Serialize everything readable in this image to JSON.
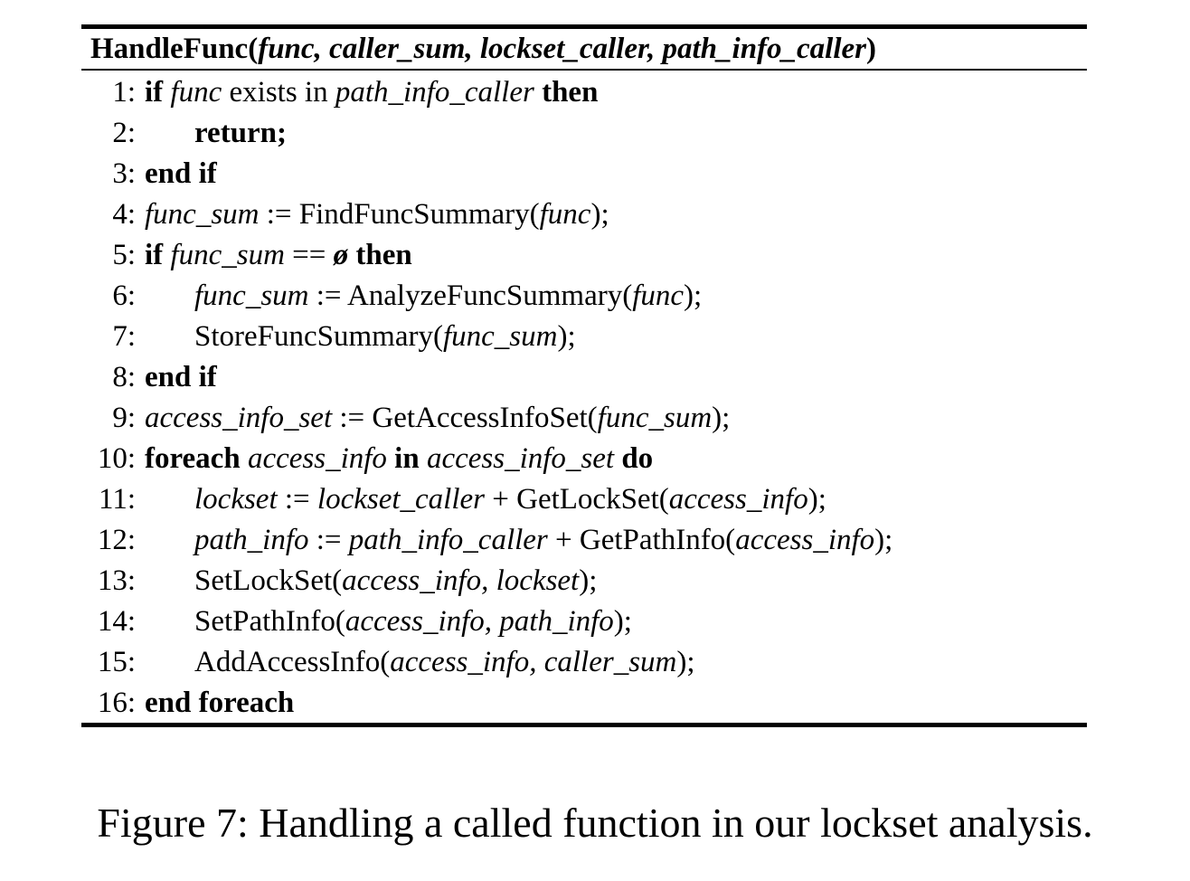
{
  "algorithm": {
    "header": [
      {
        "text": "HandleFunc(",
        "style": "b"
      },
      {
        "text": "func, caller_sum, lockset_caller, path_info_caller",
        "style": "bi"
      },
      {
        "text": ")",
        "style": "b"
      }
    ],
    "lines": [
      {
        "num": "1:",
        "indent": 0,
        "parts": [
          {
            "text": "if",
            "style": "b"
          },
          {
            "text": " "
          },
          {
            "text": "func",
            "style": "i"
          },
          {
            "text": "  exists in  "
          },
          {
            "text": "path_info_caller",
            "style": "i"
          },
          {
            "text": "  "
          },
          {
            "text": "then",
            "style": "b"
          }
        ]
      },
      {
        "num": "2:",
        "indent": 1,
        "parts": [
          {
            "text": "return;",
            "style": "b"
          }
        ]
      },
      {
        "num": "3:",
        "indent": 0,
        "parts": [
          {
            "text": "end if",
            "style": "b"
          }
        ]
      },
      {
        "num": "4:",
        "indent": 0,
        "parts": [
          {
            "text": "func_sum",
            "style": "i"
          },
          {
            "text": " := FindFuncSummary("
          },
          {
            "text": "func",
            "style": "i"
          },
          {
            "text": ");"
          }
        ]
      },
      {
        "num": "5:",
        "indent": 0,
        "parts": [
          {
            "text": "if",
            "style": "b"
          },
          {
            "text": " "
          },
          {
            "text": "func_sum",
            "style": "i"
          },
          {
            "text": "  == "
          },
          {
            "text": "ø",
            "style": "bi"
          },
          {
            "text": "  "
          },
          {
            "text": "then",
            "style": "b"
          }
        ]
      },
      {
        "num": "6:",
        "indent": 1,
        "parts": [
          {
            "text": "func_sum",
            "style": "i"
          },
          {
            "text": " := AnalyzeFuncSummary("
          },
          {
            "text": "func",
            "style": "i"
          },
          {
            "text": ");"
          }
        ]
      },
      {
        "num": "7:",
        "indent": 1,
        "parts": [
          {
            "text": "StoreFuncSummary("
          },
          {
            "text": "func_sum",
            "style": "i"
          },
          {
            "text": ");"
          }
        ]
      },
      {
        "num": "8:",
        "indent": 0,
        "parts": [
          {
            "text": "end if",
            "style": "b"
          }
        ]
      },
      {
        "num": "9:",
        "indent": 0,
        "parts": [
          {
            "text": "access_info_set",
            "style": "i"
          },
          {
            "text": " := GetAccessInfoSet("
          },
          {
            "text": "func_sum",
            "style": "i"
          },
          {
            "text": ");"
          }
        ]
      },
      {
        "num": "10:",
        "indent": 0,
        "parts": [
          {
            "text": "foreach",
            "style": "b"
          },
          {
            "text": "  "
          },
          {
            "text": "access_info",
            "style": "i"
          },
          {
            "text": "  "
          },
          {
            "text": "in",
            "style": "b"
          },
          {
            "text": "  "
          },
          {
            "text": "access_info_set",
            "style": "i"
          },
          {
            "text": "  "
          },
          {
            "text": "do",
            "style": "b"
          }
        ]
      },
      {
        "num": "11:",
        "indent": 1,
        "parts": [
          {
            "text": "lockset",
            "style": "i"
          },
          {
            "text": " := "
          },
          {
            "text": "lockset_caller",
            "style": "i"
          },
          {
            "text": " + GetLockSet("
          },
          {
            "text": "access_info",
            "style": "i"
          },
          {
            "text": ");"
          }
        ]
      },
      {
        "num": "12:",
        "indent": 1,
        "parts": [
          {
            "text": "path_info",
            "style": "i"
          },
          {
            "text": " := "
          },
          {
            "text": "path_info_caller",
            "style": "i"
          },
          {
            "text": " + GetPathInfo("
          },
          {
            "text": "access_info",
            "style": "i"
          },
          {
            "text": ");"
          }
        ]
      },
      {
        "num": "13:",
        "indent": 1,
        "parts": [
          {
            "text": "SetLockSet("
          },
          {
            "text": "access_info, lockset",
            "style": "i"
          },
          {
            "text": ");"
          }
        ]
      },
      {
        "num": "14:",
        "indent": 1,
        "parts": [
          {
            "text": "SetPathInfo("
          },
          {
            "text": "access_info, path_info",
            "style": "i"
          },
          {
            "text": ");"
          }
        ]
      },
      {
        "num": "15:",
        "indent": 1,
        "parts": [
          {
            "text": "AddAccessInfo("
          },
          {
            "text": "access_info, caller_sum",
            "style": "i"
          },
          {
            "text": ");"
          }
        ]
      },
      {
        "num": "16:",
        "indent": 0,
        "parts": [
          {
            "text": "end foreach",
            "style": "b"
          }
        ]
      }
    ]
  },
  "caption": "Figure 7: Handling a called function in our lockset analysis."
}
